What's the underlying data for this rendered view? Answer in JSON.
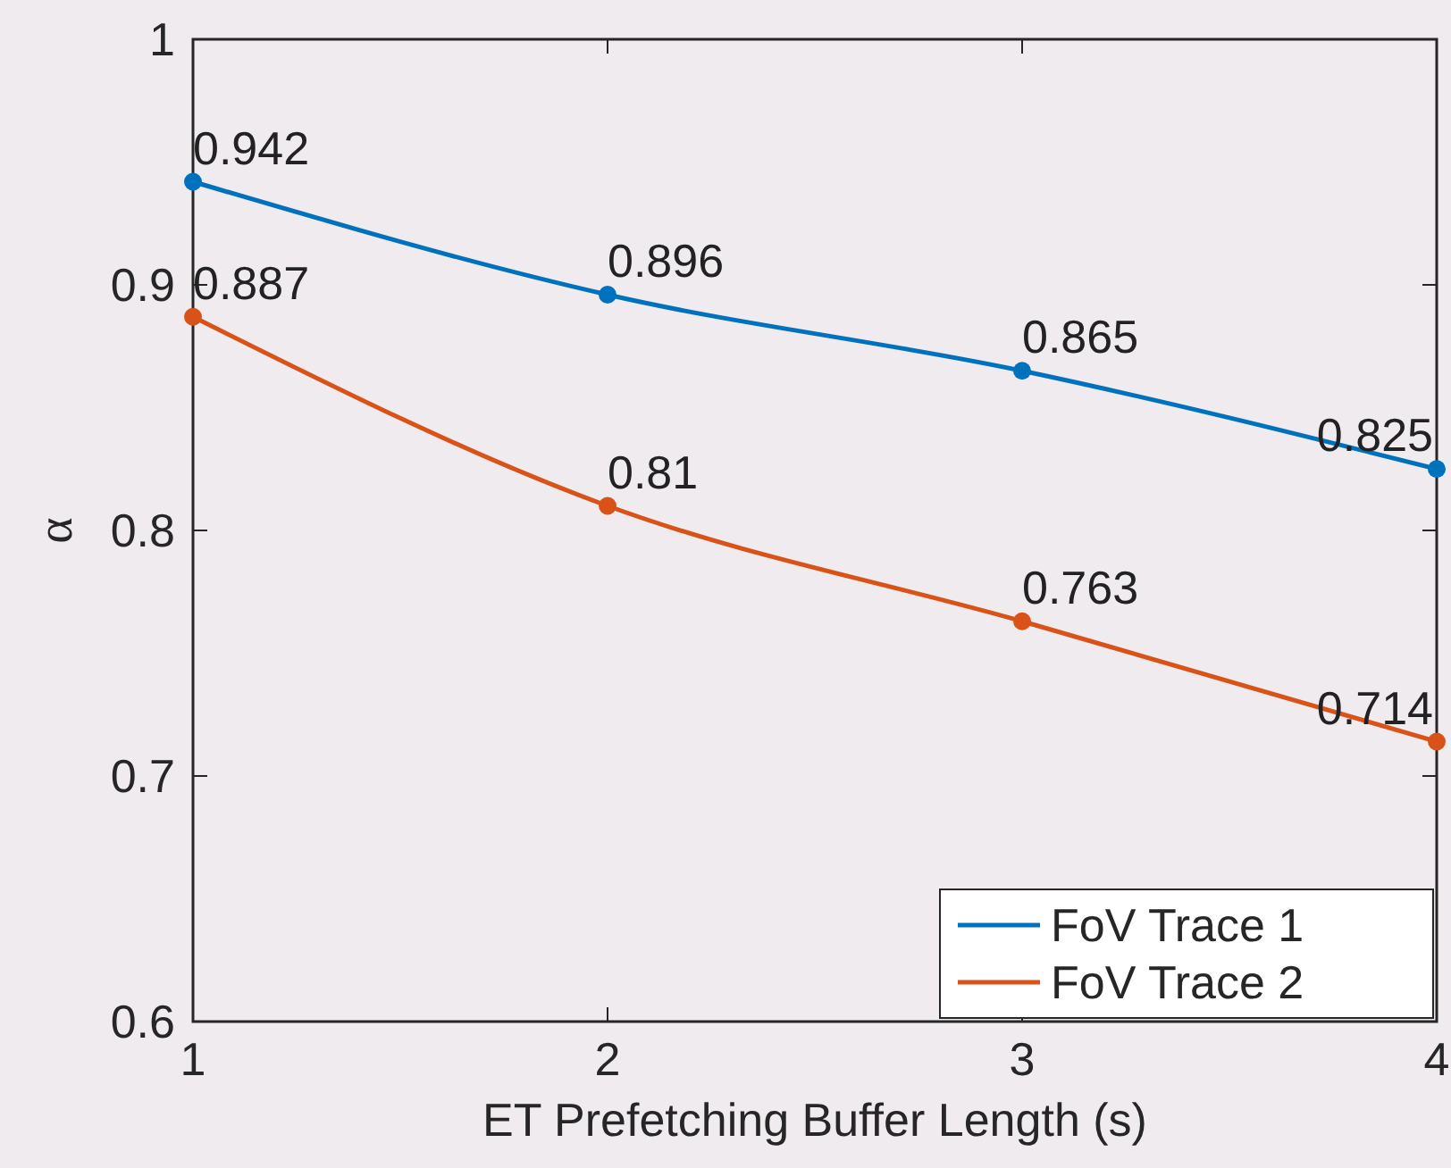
{
  "chart_data": {
    "type": "line",
    "xlabel": "ET Prefetching Buffer Length (s)",
    "ylabel": "α",
    "x": [
      1,
      2,
      3,
      4
    ],
    "series": [
      {
        "name": "FoV Trace 1",
        "color": "#0072bd",
        "values": [
          0.942,
          0.896,
          0.865,
          0.825
        ]
      },
      {
        "name": "FoV Trace 2",
        "color": "#d95319",
        "values": [
          0.887,
          0.81,
          0.763,
          0.714
        ]
      }
    ],
    "xlim": [
      1,
      4
    ],
    "xticks": [
      1,
      2,
      3,
      4
    ],
    "ylim": [
      0.6,
      1
    ],
    "yticks": [
      0.6,
      0.7,
      0.8,
      0.9,
      1
    ],
    "data_labels": true,
    "legend": "bottom right",
    "marker": "circle",
    "line_style": "solid",
    "grid": false
  }
}
